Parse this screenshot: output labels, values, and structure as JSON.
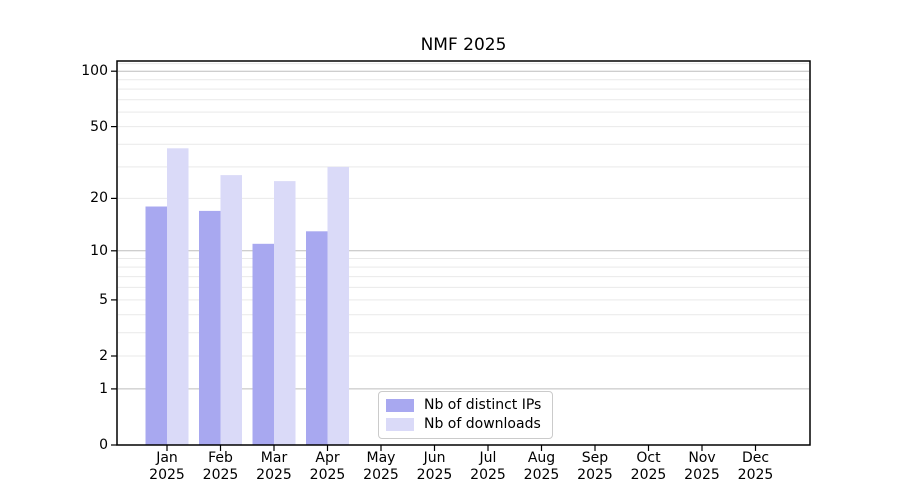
{
  "chart_data": {
    "type": "bar",
    "title": "NMF 2025",
    "categories": [
      "Jan",
      "Feb",
      "Mar",
      "Apr",
      "May",
      "Jun",
      "Jul",
      "Aug",
      "Sep",
      "Oct",
      "Nov",
      "Dec"
    ],
    "xtick_year": "2025",
    "series": [
      {
        "name": "Nb of distinct IPs",
        "color": "#a8a8f0",
        "values": [
          18,
          17,
          11,
          13,
          null,
          null,
          null,
          null,
          null,
          null,
          null,
          null
        ]
      },
      {
        "name": "Nb of downloads",
        "color": "#dadaf8",
        "values": [
          38,
          27,
          25,
          30,
          null,
          null,
          null,
          null,
          null,
          null,
          null,
          null
        ]
      }
    ],
    "xlabel": "",
    "ylabel": "",
    "yscale": "log1p",
    "ylim": [
      0,
      113.6
    ],
    "yticks": [
      0,
      1,
      2,
      5,
      10,
      20,
      50,
      100
    ],
    "major_gridlines": [
      1,
      10,
      100
    ],
    "minor_gridlines": [
      2,
      3,
      4,
      5,
      6,
      7,
      8,
      9,
      20,
      30,
      40,
      50,
      60,
      70,
      80,
      90,
      110
    ],
    "grid": true,
    "legend_position": "lower center",
    "colors": {
      "major_grid": "#bdbdbd",
      "minor_grid": "#e9e9e9",
      "spine": "#000000",
      "text": "#000000",
      "background": "#ffffff"
    }
  }
}
